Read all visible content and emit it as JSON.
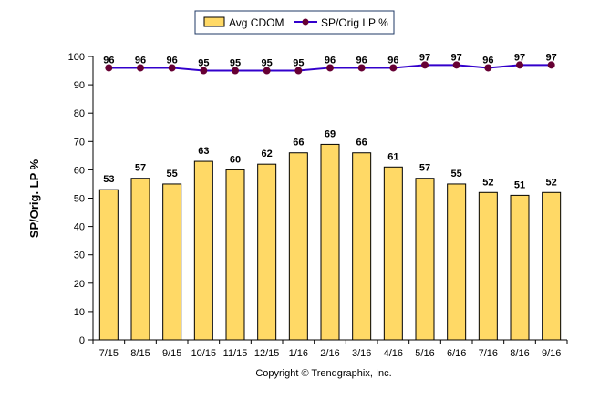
{
  "chart_data": {
    "type": "bar",
    "categories": [
      "7/15",
      "8/15",
      "9/15",
      "10/15",
      "11/15",
      "12/15",
      "1/16",
      "2/16",
      "3/16",
      "4/16",
      "5/16",
      "6/16",
      "7/16",
      "8/16",
      "9/16"
    ],
    "series": [
      {
        "name": "Avg CDOM",
        "type": "bar",
        "color": "#FFD966",
        "values": [
          53,
          57,
          55,
          63,
          60,
          62,
          66,
          69,
          66,
          61,
          57,
          55,
          52,
          51,
          52
        ]
      },
      {
        "name": "SP/Orig LP %",
        "type": "line",
        "color": "#3300CC",
        "marker_color": "#660033",
        "values": [
          96,
          96,
          96,
          95,
          95,
          95,
          95,
          96,
          96,
          96,
          97,
          97,
          96,
          97,
          97
        ]
      }
    ],
    "ylabel": "SP/Orig. LP %",
    "xlabel": "",
    "ylim": [
      0,
      100
    ],
    "yticks": [
      0,
      10,
      20,
      30,
      40,
      50,
      60,
      70,
      80,
      90,
      100
    ],
    "legend_position": "top-center",
    "grid": false
  },
  "footer": "Copyright © Trendgraphix, Inc."
}
